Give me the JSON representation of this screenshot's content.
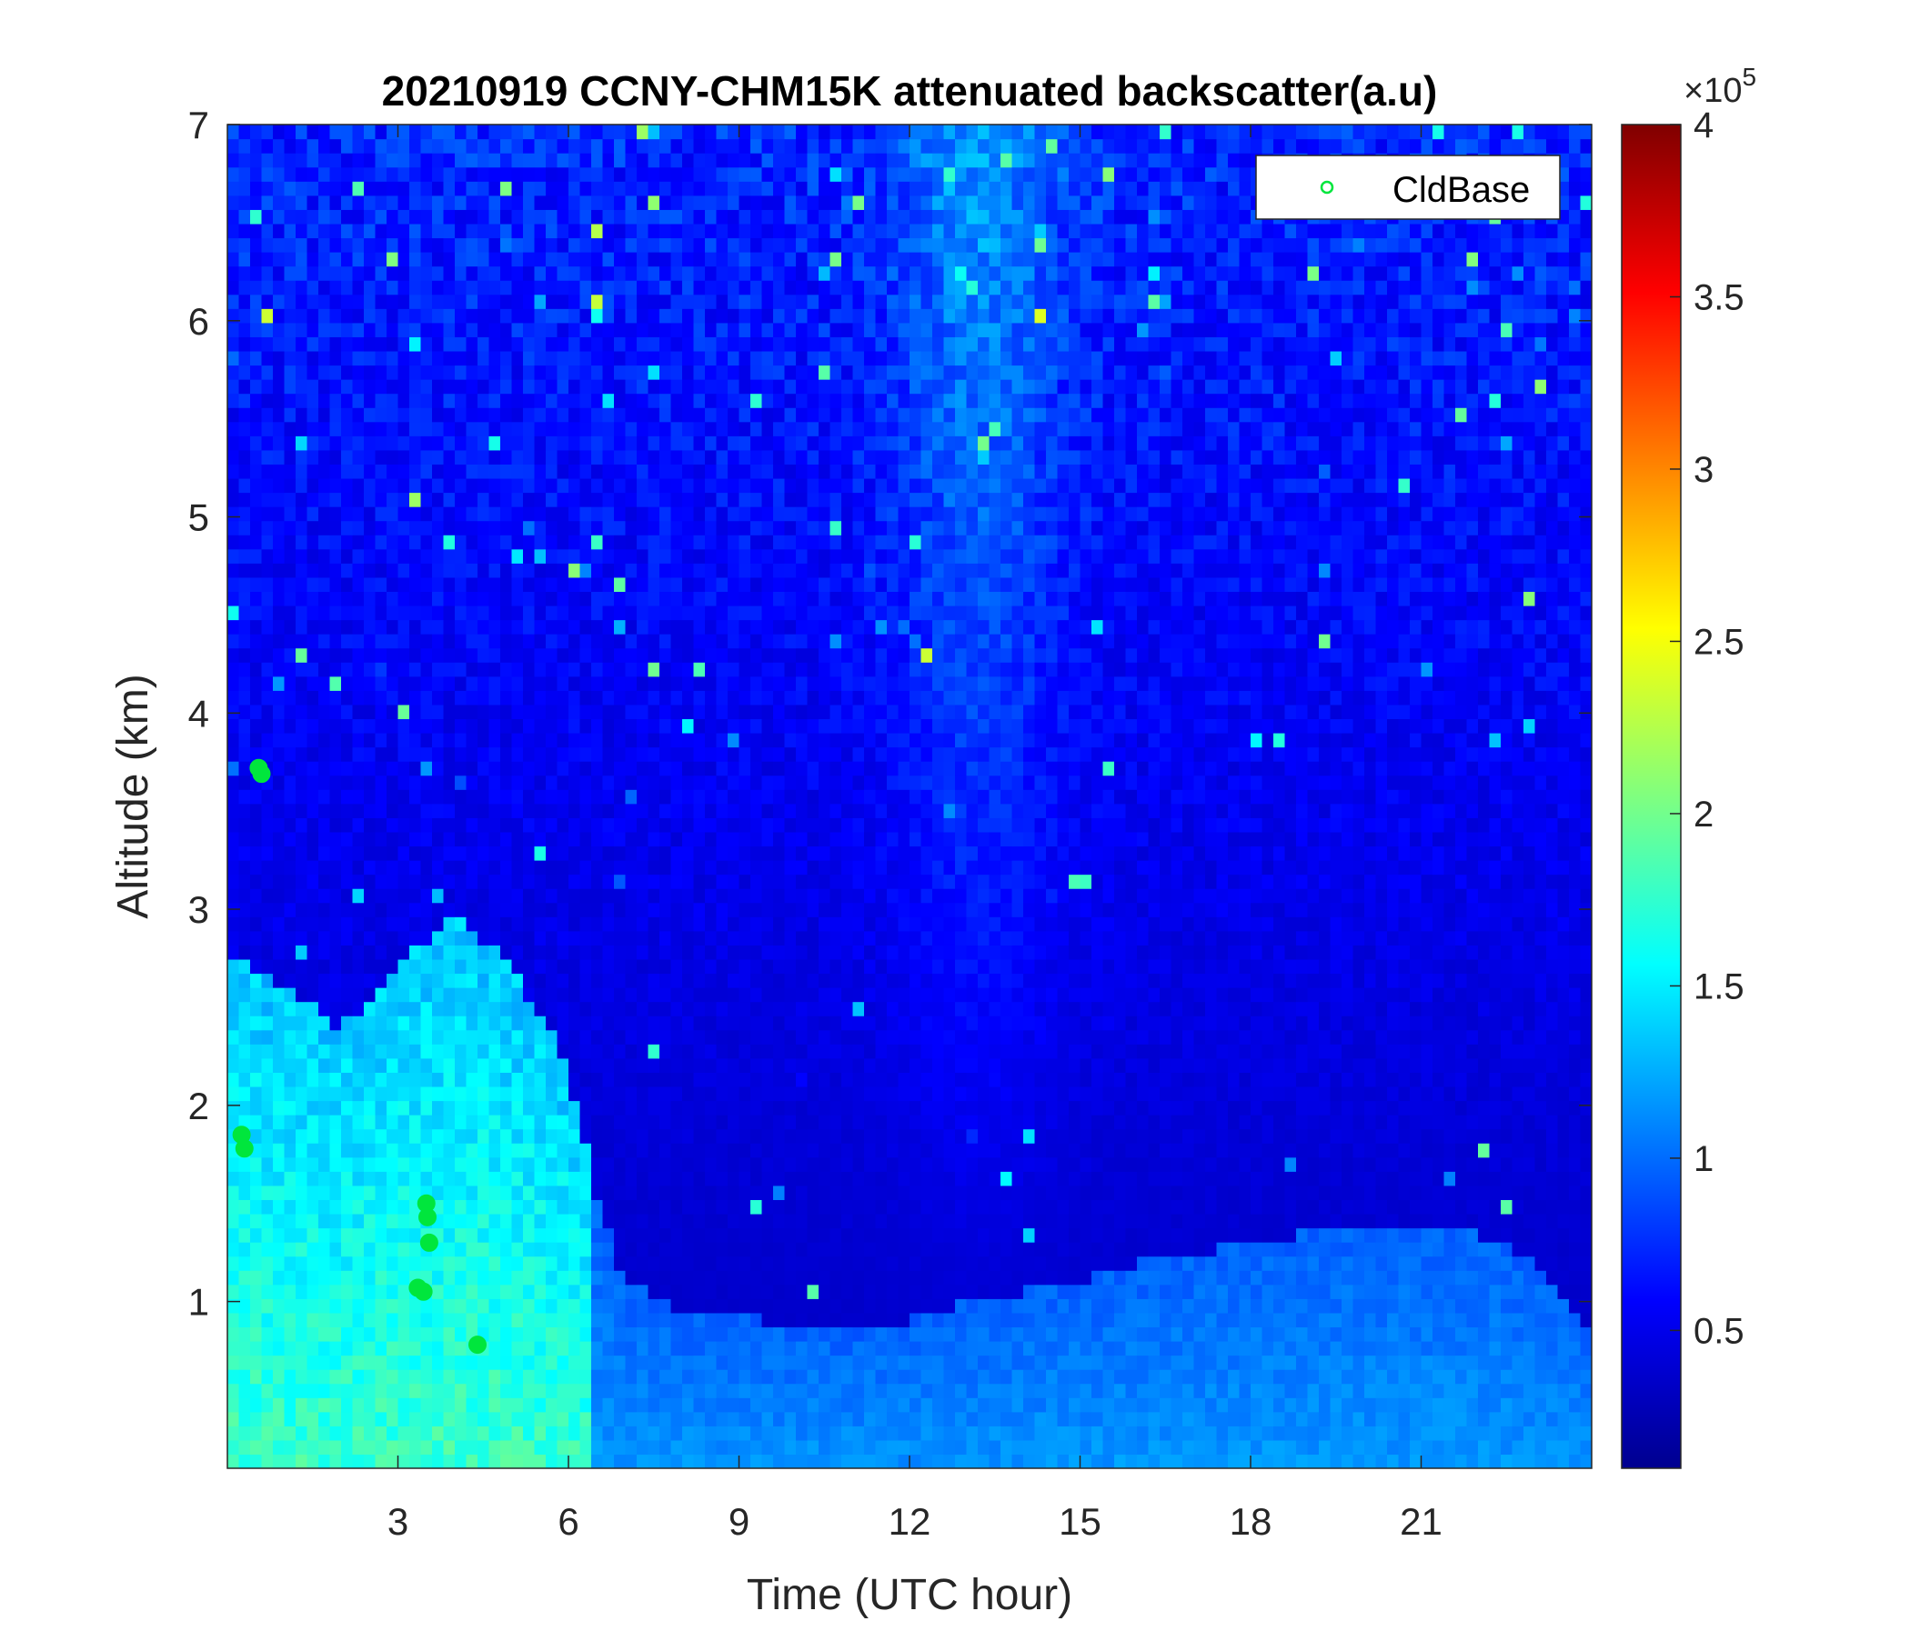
{
  "chart_data": {
    "type": "heatmap",
    "title": "20210919 CCNY-CHM15K attenuated backscatter(a.u)",
    "xlabel": "Time (UTC hour)",
    "ylabel": "Altitude (km)",
    "xlim": [
      0,
      24
    ],
    "ylim": [
      0.15,
      7
    ],
    "xticks": [
      3,
      6,
      9,
      12,
      15,
      18,
      21
    ],
    "yticks": [
      1,
      2,
      3,
      4,
      5,
      6,
      7
    ],
    "colorbar": {
      "colormap": "jet",
      "range": [
        0.1,
        4
      ],
      "ticks": [
        0.5,
        1,
        1.5,
        2,
        2.5,
        3,
        3.5,
        4
      ],
      "ticklabels": [
        "0.5",
        "1",
        "1.5",
        "2",
        "2.5",
        "3",
        "3.5",
        "4"
      ],
      "exponent_base": "×10",
      "exponent": "5"
    },
    "legend": {
      "position": "top-right",
      "entries": [
        "CldBase"
      ]
    },
    "colors": {
      "cloud_base_marker": "#00e63c"
    },
    "boundary_layer_top_km": [
      [
        0,
        2.8
      ],
      [
        1,
        2.6
      ],
      [
        2,
        2.4
      ],
      [
        3,
        2.7
      ],
      [
        4,
        3.0
      ],
      [
        5,
        2.7
      ],
      [
        6,
        2.2
      ],
      [
        6.5,
        1.5
      ],
      [
        7,
        1.1
      ],
      [
        8,
        0.95
      ],
      [
        9,
        0.92
      ],
      [
        10,
        0.88
      ],
      [
        11,
        0.85
      ],
      [
        12,
        0.9
      ],
      [
        13,
        1.0
      ],
      [
        14,
        1.05
      ],
      [
        15,
        1.1
      ],
      [
        16,
        1.2
      ],
      [
        17,
        1.25
      ],
      [
        18,
        1.3
      ],
      [
        19,
        1.35
      ],
      [
        20,
        1.4
      ],
      [
        21,
        1.4
      ],
      [
        22,
        1.35
      ],
      [
        23,
        1.2
      ],
      [
        24,
        0.85
      ]
    ],
    "cloud_base": [
      {
        "time": 0.25,
        "altitude": 1.85
      },
      {
        "time": 0.3,
        "altitude": 1.78
      },
      {
        "time": 0.55,
        "altitude": 3.72
      },
      {
        "time": 0.6,
        "altitude": 3.69
      },
      {
        "time": 3.35,
        "altitude": 1.07
      },
      {
        "time": 3.45,
        "altitude": 1.05
      },
      {
        "time": 3.5,
        "altitude": 1.5
      },
      {
        "time": 3.52,
        "altitude": 1.43
      },
      {
        "time": 3.55,
        "altitude": 1.3
      },
      {
        "time": 4.4,
        "altitude": 0.78
      }
    ]
  }
}
